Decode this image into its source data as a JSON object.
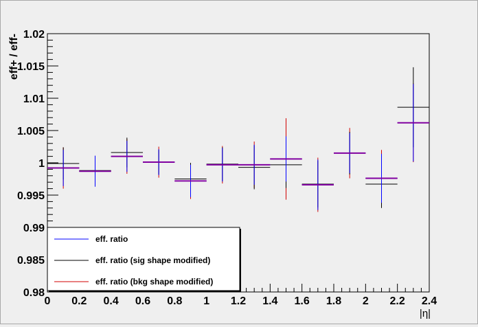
{
  "chart_data": {
    "type": "scatter",
    "title": "",
    "xlabel": "|η|",
    "ylabel": "eff+ / eff-",
    "xlim": [
      0,
      2.4
    ],
    "ylim": [
      0.98,
      1.02
    ],
    "grid": false,
    "legend_placement": "bottom-left",
    "x_ticks": [
      0,
      0.2,
      0.4,
      0.6,
      0.8,
      1,
      1.2,
      1.4,
      1.6,
      1.8,
      2,
      2.2,
      2.4
    ],
    "x_tick_labels": [
      "0",
      "0.2",
      "0.4",
      "0.6",
      "0.8",
      "1",
      "1.2",
      "1.4",
      "1.6",
      "1.8",
      "2",
      "2.2",
      "2.4"
    ],
    "y_ticks": [
      0.98,
      0.985,
      0.99,
      0.995,
      1,
      1.005,
      1.01,
      1.015,
      1.02
    ],
    "y_tick_labels": [
      "0.98",
      "0.985",
      "0.99",
      "0.995",
      "1",
      "1.005",
      "1.01",
      "1.015",
      "1.02"
    ],
    "bins": [
      {
        "xlow": 0.0,
        "xhigh": 0.2
      },
      {
        "xlow": 0.2,
        "xhigh": 0.4
      },
      {
        "xlow": 0.4,
        "xhigh": 0.6
      },
      {
        "xlow": 0.6,
        "xhigh": 0.8
      },
      {
        "xlow": 0.8,
        "xhigh": 1.0
      },
      {
        "xlow": 1.0,
        "xhigh": 1.2
      },
      {
        "xlow": 1.2,
        "xhigh": 1.4
      },
      {
        "xlow": 1.4,
        "xhigh": 1.6
      },
      {
        "xlow": 1.6,
        "xhigh": 1.8
      },
      {
        "xlow": 1.8,
        "xhigh": 2.0
      },
      {
        "xlow": 2.0,
        "xhigh": 2.2
      },
      {
        "xlow": 2.2,
        "xhigh": 2.4
      }
    ],
    "series": [
      {
        "name": "eff. ratio",
        "color": "#0000ff",
        "values": [
          0.9992,
          0.9987,
          1.001,
          1.0001,
          0.9972,
          0.9997,
          0.9997,
          1.0006,
          0.9966,
          1.0015,
          0.9976,
          1.0062
        ],
        "errors": [
          0.0028,
          0.0024,
          0.0024,
          0.002,
          0.0025,
          0.0026,
          0.0031,
          0.0035,
          0.0039,
          0.0031,
          0.0038,
          0.006
        ]
      },
      {
        "name": "eff. ratio (sig shape modified)",
        "color": "#000000",
        "values": [
          0.9999,
          0.9988,
          1.0016,
          1.0001,
          0.9975,
          0.9998,
          0.9993,
          0.9997,
          0.9967,
          1.0015,
          0.9967,
          1.0086
        ],
        "errors": [
          0.0025,
          0.0021,
          0.0023,
          0.0019,
          0.0025,
          0.0026,
          0.0034,
          0.0036,
          0.0036,
          0.0033,
          0.0037,
          0.0062
        ]
      },
      {
        "name": "eff. ratio (bkg shape modified)",
        "color": "#d00000",
        "values": [
          0.9992,
          0.9987,
          1.001,
          1.0001,
          0.9972,
          0.9997,
          0.9997,
          1.0006,
          0.9966,
          1.0015,
          0.9976,
          1.0062
        ],
        "errors": [
          0.0032,
          0.0023,
          0.0027,
          0.0024,
          0.0028,
          0.0029,
          0.0036,
          0.0063,
          0.0042,
          0.0039,
          0.0044,
          0.0061
        ]
      }
    ],
    "overlay_color": "#8000a0"
  }
}
